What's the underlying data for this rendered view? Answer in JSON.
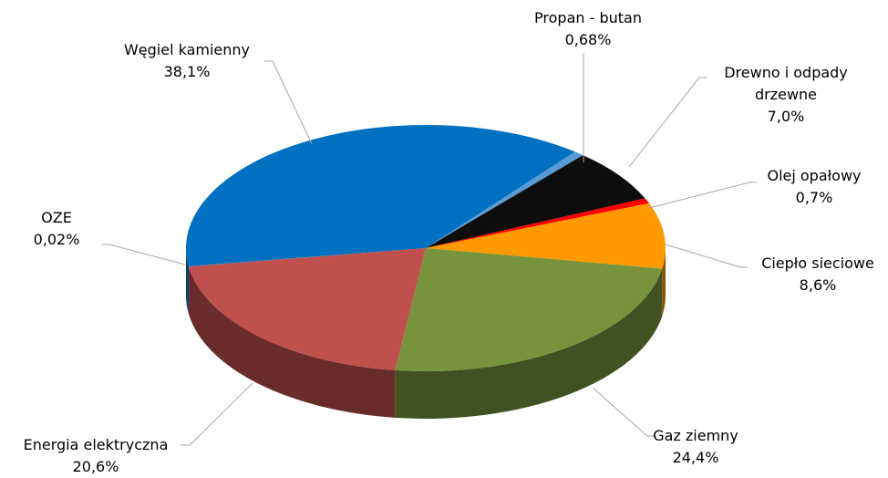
{
  "chart_data": {
    "type": "pie3d",
    "categories": [
      "Węgiel kamienny",
      "Propan - butan",
      "Drewno i odpady drzewne",
      "Olej opałowy",
      "Ciepło sieciowe",
      "Gaz ziemny",
      "Energia elektryczna",
      "OZE"
    ],
    "values": [
      38.1,
      0.68,
      7.0,
      0.7,
      8.6,
      24.4,
      20.6,
      0.02
    ],
    "value_labels": [
      "38,1%",
      "0,68%",
      "7,0%",
      "0,7%",
      "8,6%",
      "24,4%",
      "20,6%",
      "0,02%"
    ],
    "colors": [
      "#0070c0",
      "#5b9bd5",
      "#0d0d0d",
      "#ff0000",
      "#ff9900",
      "#77933c",
      "#c0504d",
      "#4f81bd"
    ]
  }
}
